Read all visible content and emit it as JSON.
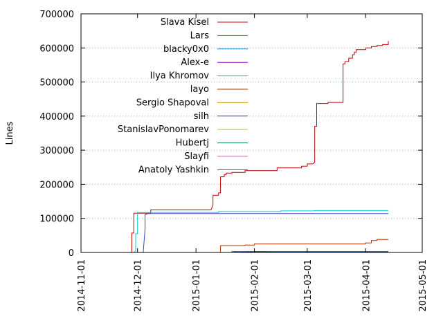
{
  "chart_data": {
    "type": "line",
    "title": "",
    "xlabel": "",
    "ylabel": "Lines",
    "x_type": "date",
    "xlim": [
      "2014-11-01",
      "2015-05-01"
    ],
    "ylim": [
      0,
      700000
    ],
    "x_ticks": [
      "2014-11-01",
      "2014-12-01",
      "2015-01-01",
      "2015-02-01",
      "2015-03-01",
      "2015-04-01",
      "2015-05-01"
    ],
    "y_ticks": [
      0,
      100000,
      200000,
      300000,
      400000,
      500000,
      600000,
      700000
    ],
    "y_tick_labels": [
      "0",
      "100000",
      "200000",
      "300000",
      "400000",
      "500000",
      "600000",
      "700000"
    ],
    "grid": "horizontal dotted",
    "legend_position": "top-left inside",
    "series": [
      {
        "name": "Slava Kisel",
        "color": "#c00000",
        "points": [
          [
            "2014-11-28",
            0
          ],
          [
            "2014-11-28",
            57000
          ],
          [
            "2014-11-29",
            57000
          ],
          [
            "2014-11-29",
            115000
          ],
          [
            "2014-12-08",
            115000
          ],
          [
            "2014-12-08",
            125000
          ],
          [
            "2015-01-09",
            125000
          ],
          [
            "2015-01-10",
            140000
          ],
          [
            "2015-01-10",
            168000
          ],
          [
            "2015-01-13",
            168000
          ],
          [
            "2015-01-13",
            175000
          ],
          [
            "2015-01-14",
            175000
          ],
          [
            "2015-01-14",
            222000
          ],
          [
            "2015-01-16",
            222000
          ],
          [
            "2015-01-16",
            228000
          ],
          [
            "2015-01-17",
            228000
          ],
          [
            "2015-01-17",
            233000
          ],
          [
            "2015-01-20",
            233000
          ],
          [
            "2015-01-20",
            235000
          ],
          [
            "2015-01-27",
            235000
          ],
          [
            "2015-01-27",
            240000
          ],
          [
            "2015-02-13",
            240000
          ],
          [
            "2015-02-13",
            248000
          ],
          [
            "2015-02-26",
            248000
          ],
          [
            "2015-02-26",
            253000
          ],
          [
            "2015-03-01",
            253000
          ],
          [
            "2015-03-01",
            260000
          ],
          [
            "2015-03-04",
            260000
          ],
          [
            "2015-03-05",
            265000
          ],
          [
            "2015-03-05",
            370000
          ],
          [
            "2015-03-06",
            370000
          ],
          [
            "2015-03-06",
            437000
          ],
          [
            "2015-03-12",
            437000
          ],
          [
            "2015-03-12",
            440000
          ],
          [
            "2015-03-20",
            440000
          ],
          [
            "2015-03-20",
            553000
          ],
          [
            "2015-03-21",
            553000
          ],
          [
            "2015-03-21",
            560000
          ],
          [
            "2015-03-23",
            560000
          ],
          [
            "2015-03-23",
            570000
          ],
          [
            "2015-03-25",
            570000
          ],
          [
            "2015-03-25",
            580000
          ],
          [
            "2015-03-26",
            580000
          ],
          [
            "2015-03-26",
            588000
          ],
          [
            "2015-03-27",
            588000
          ],
          [
            "2015-03-27",
            595000
          ],
          [
            "2015-04-01",
            595000
          ],
          [
            "2015-04-01",
            600000
          ],
          [
            "2015-04-04",
            600000
          ],
          [
            "2015-04-04",
            604000
          ],
          [
            "2015-04-07",
            604000
          ],
          [
            "2015-04-07",
            607000
          ],
          [
            "2015-04-10",
            607000
          ],
          [
            "2015-04-10",
            610000
          ],
          [
            "2015-04-13",
            610000
          ],
          [
            "2015-04-13",
            620000
          ]
        ]
      },
      {
        "name": "Lars",
        "color": "#00a000",
        "points": [
          [
            "2015-01-20",
            0
          ],
          [
            "2015-01-20",
            3000
          ],
          [
            "2015-04-13",
            3000
          ]
        ]
      },
      {
        "name": "blacky0x0",
        "color": "#0080c0",
        "points": [
          [
            "2014-11-23",
            0
          ],
          [
            "2015-01-25",
            0
          ],
          [
            "2015-01-25",
            1000
          ],
          [
            "2015-04-13",
            1000
          ]
        ]
      },
      {
        "name": "Alex-e",
        "color": "#9400d3",
        "points": [
          [
            "2015-01-28",
            0
          ],
          [
            "2015-01-28",
            2000
          ],
          [
            "2015-04-13",
            2000
          ]
        ]
      },
      {
        "name": "Ilya Khromov",
        "color": "#00d0d0",
        "points": [
          [
            "2014-11-29",
            0
          ],
          [
            "2014-11-30",
            5000
          ],
          [
            "2014-11-30",
            55000
          ],
          [
            "2014-12-01",
            55000
          ],
          [
            "2014-12-01",
            117000
          ],
          [
            "2015-01-13",
            117000
          ],
          [
            "2015-01-13",
            120000
          ],
          [
            "2015-02-15",
            120000
          ],
          [
            "2015-02-15",
            122000
          ],
          [
            "2015-03-05",
            122000
          ],
          [
            "2015-03-05",
            123000
          ],
          [
            "2015-04-13",
            123000
          ]
        ]
      },
      {
        "name": "layo",
        "color": "#b03000",
        "points": [
          [
            "2015-01-14",
            0
          ],
          [
            "2015-01-14",
            20000
          ],
          [
            "2015-01-27",
            20000
          ],
          [
            "2015-01-27",
            22000
          ],
          [
            "2015-02-01",
            22000
          ],
          [
            "2015-02-01",
            25000
          ],
          [
            "2015-04-01",
            25000
          ],
          [
            "2015-04-01",
            28000
          ],
          [
            "2015-04-04",
            28000
          ],
          [
            "2015-04-04",
            35000
          ],
          [
            "2015-04-07",
            35000
          ],
          [
            "2015-04-07",
            38000
          ],
          [
            "2015-04-13",
            38000
          ]
        ]
      },
      {
        "name": "Sergio Shapoval",
        "color": "#c0a000",
        "points": [
          [
            "2015-02-01",
            0
          ],
          [
            "2015-02-01",
            1000
          ],
          [
            "2015-04-13",
            1000
          ]
        ]
      },
      {
        "name": "silh",
        "color": "#4040c0",
        "points": [
          [
            "2014-12-04",
            0
          ],
          [
            "2014-12-05",
            70000
          ],
          [
            "2014-12-05",
            112000
          ],
          [
            "2014-12-06",
            112000
          ],
          [
            "2014-12-06",
            114000
          ],
          [
            "2015-04-13",
            114000
          ]
        ]
      },
      {
        "name": "StanislavPonomarev",
        "color": "#e0c000",
        "points": [
          [
            "2015-02-05",
            0
          ],
          [
            "2015-02-05",
            1000
          ],
          [
            "2015-04-13",
            1000
          ]
        ]
      },
      {
        "name": "Hubertj",
        "color": "#008040",
        "points": [
          [
            "2015-02-08",
            0
          ],
          [
            "2015-02-08",
            2000
          ],
          [
            "2015-04-13",
            2000
          ]
        ]
      },
      {
        "name": "Slayfi",
        "color": "#e060e0",
        "points": [
          [
            "2015-02-10",
            0
          ],
          [
            "2015-02-10",
            500
          ],
          [
            "2015-04-13",
            500
          ]
        ]
      },
      {
        "name": "Anatoly Yashkin",
        "color": "#2060a0",
        "points": [
          [
            "2015-01-21",
            0
          ],
          [
            "2015-01-21",
            800
          ],
          [
            "2015-04-13",
            800
          ]
        ]
      }
    ]
  }
}
